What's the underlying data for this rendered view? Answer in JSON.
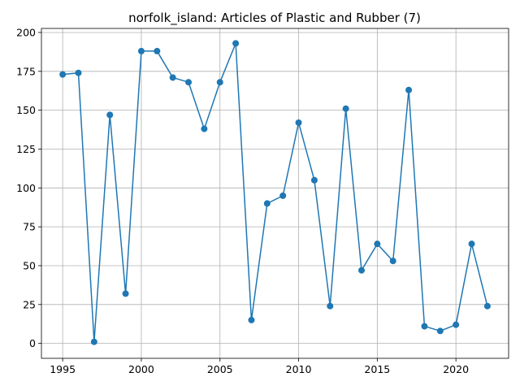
{
  "chart_data": {
    "type": "line",
    "title": "norfolk_island: Articles of Plastic and Rubber (7)",
    "xlabel": "",
    "ylabel": "",
    "x": [
      1995,
      1996,
      1997,
      1998,
      1999,
      2000,
      2001,
      2002,
      2003,
      2004,
      2005,
      2006,
      2007,
      2008,
      2009,
      2010,
      2011,
      2012,
      2013,
      2014,
      2015,
      2016,
      2017,
      2018,
      2019,
      2020,
      2021,
      2022
    ],
    "series": [
      {
        "values": [
          173,
          174,
          1,
          147,
          32,
          188,
          188,
          171,
          168,
          138,
          168,
          193,
          15,
          90,
          95,
          142,
          105,
          24,
          151,
          47,
          64,
          53,
          163,
          11,
          8,
          12,
          64,
          24
        ]
      }
    ],
    "xlim": [
      1993.65,
      2023.35
    ],
    "ylim": [
      -9.6,
      202.6
    ],
    "x_ticks": [
      1995,
      2000,
      2005,
      2010,
      2015,
      2020
    ],
    "x_tick_labels": [
      "1995",
      "2000",
      "2005",
      "2010",
      "2015",
      "2020"
    ],
    "y_ticks": [
      0,
      25,
      50,
      75,
      100,
      125,
      150,
      175,
      200
    ],
    "y_tick_labels": [
      "0",
      "25",
      "50",
      "75",
      "100",
      "125",
      "150",
      "175",
      "200"
    ],
    "grid": true,
    "color": "#1f77b4"
  }
}
